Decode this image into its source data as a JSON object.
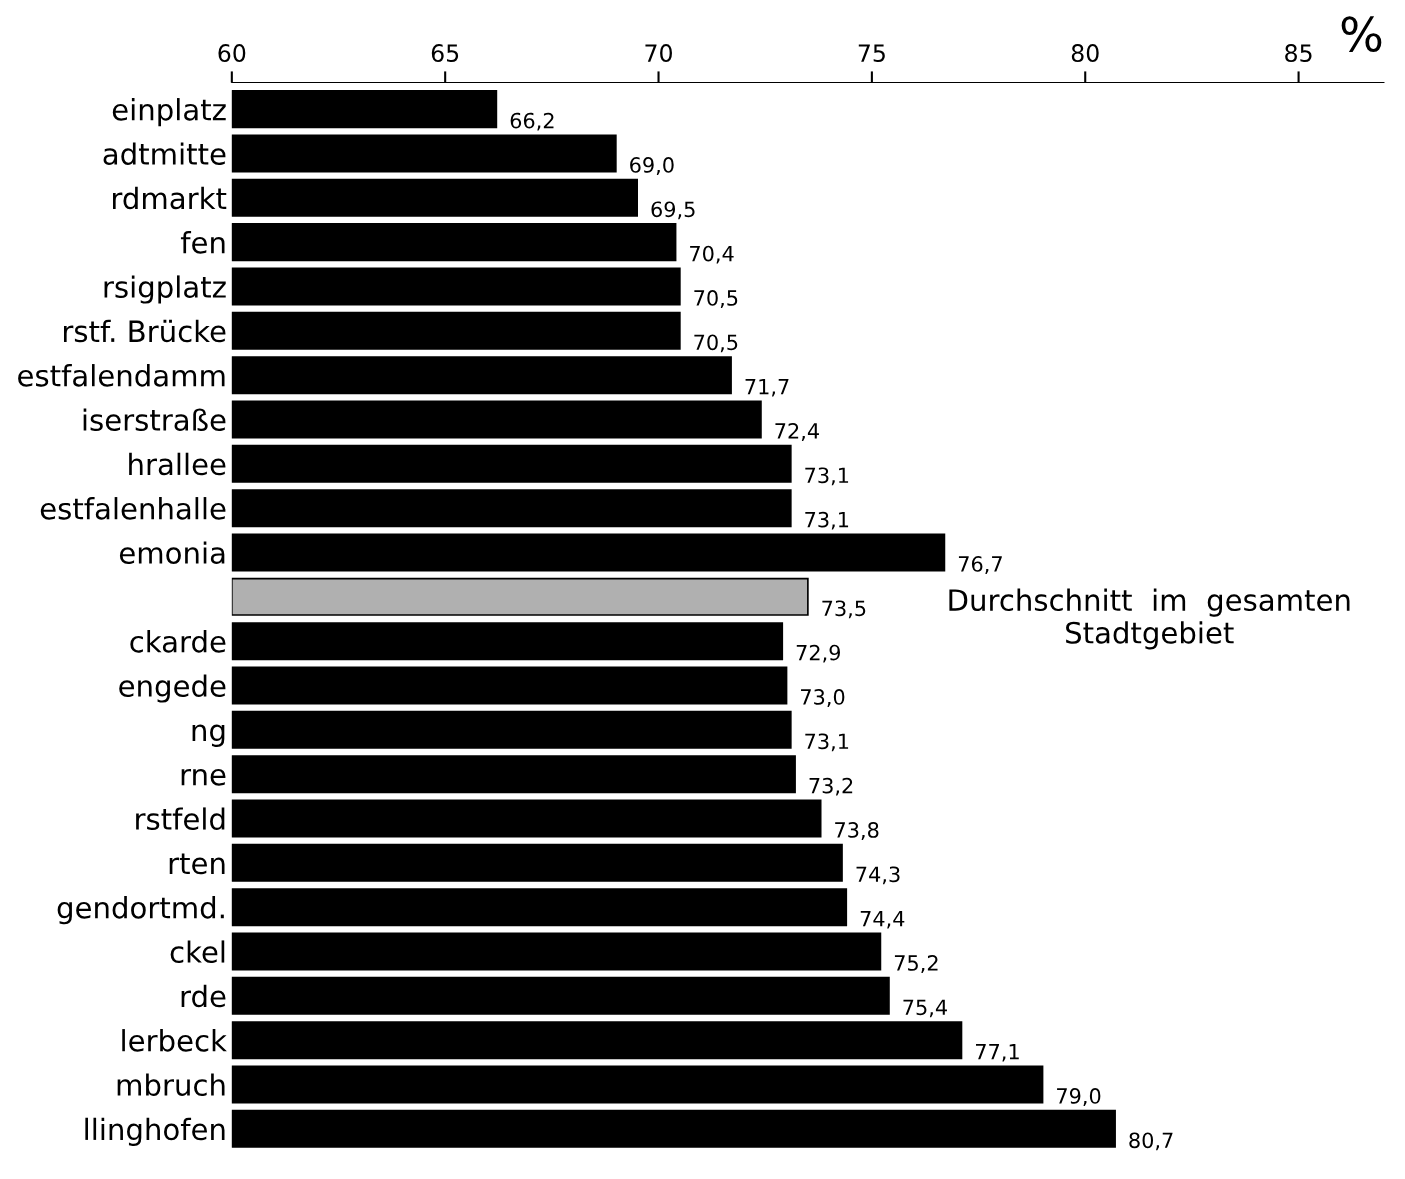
{
  "chart_data": {
    "type": "bar",
    "orientation": "horizontal",
    "xlabel": "%",
    "categories": [
      "einplatz",
      "adtmitte",
      "rdmarkt",
      "fen",
      "rsigplatz",
      "rstf. Brücke",
      "estfalendamm",
      "iserstraße",
      "hrallee",
      "estfalenhalle",
      "emonia",
      null,
      "ckarde",
      "engede",
      "ng",
      "rne",
      "rstfeld",
      "rten",
      "gendortmd.",
      "ckel",
      "rde",
      "lerbeck",
      "mbruch",
      "llinghofen"
    ],
    "values": [
      66.2,
      69.0,
      69.5,
      70.4,
      70.5,
      70.5,
      71.7,
      72.4,
      73.1,
      73.1,
      76.7,
      73.5,
      72.9,
      73.0,
      73.1,
      73.2,
      73.8,
      74.3,
      74.4,
      75.2,
      75.4,
      77.1,
      79.0,
      80.7
    ],
    "value_labels": [
      "66,2",
      "69,0",
      "69,5",
      "70,4",
      "70,5",
      "70,5",
      "71,7",
      "72,4",
      "73,1",
      "73,1",
      "76,7",
      "73,5",
      "72,9",
      "73,0",
      "73,1",
      "73,2",
      "73,8",
      "74,3",
      "74,4",
      "75,2",
      "75,4",
      "77,1",
      "79,0",
      "80,7"
    ],
    "colors": [
      "#000000",
      "#000000",
      "#000000",
      "#000000",
      "#000000",
      "#000000",
      "#000000",
      "#000000",
      "#000000",
      "#000000",
      "#000000",
      "#b0b0b0",
      "#000000",
      "#000000",
      "#000000",
      "#000000",
      "#000000",
      "#000000",
      "#000000",
      "#000000",
      "#000000",
      "#000000",
      "#000000",
      "#000000"
    ],
    "xlim": [
      60,
      87
    ],
    "xticks": [
      60,
      65,
      70,
      75,
      80,
      85
    ],
    "annotations": [
      "Durchschnitt  im  gesamten\nStadtgebiet"
    ],
    "grid": false,
    "legend": false
  }
}
